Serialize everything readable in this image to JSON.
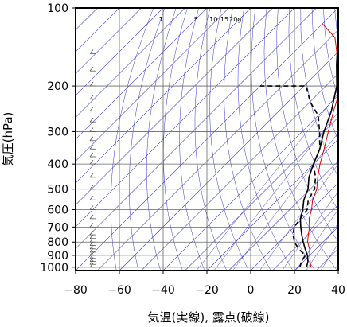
{
  "chart_data": {
    "type": "line",
    "xlabel": "気温(実線), 露点(破線)",
    "ylabel": "気圧(hPa)",
    "xlim": [
      -80,
      40
    ],
    "ylim": [
      1030,
      100
    ],
    "y_scale": "log",
    "x_ticks": [
      -80,
      -60,
      -40,
      -20,
      0,
      20,
      40
    ],
    "x_tick_labels": [
      "−80",
      "−60",
      "−40",
      "−20",
      "0",
      "20",
      "40"
    ],
    "y_ticks": [
      100,
      200,
      300,
      400,
      500,
      600,
      700,
      800,
      900,
      1000
    ],
    "y_tick_labels": [
      "100",
      "200",
      "300",
      "400",
      "500",
      "600",
      "700",
      "800",
      "900",
      "1000"
    ],
    "mixing_ratio_labels": [
      {
        "text": "1",
        "t": -41
      },
      {
        "text": "5",
        "t": -25
      },
      {
        "text": "10",
        "t": -17
      },
      {
        "text": "15",
        "t": -12
      },
      {
        "text": "20g",
        "t": -7
      }
    ],
    "series": [
      {
        "role": "temperature",
        "style": "solid",
        "color": "#000000",
        "points": [
          [
            24,
            1000
          ],
          [
            22,
            950
          ],
          [
            19,
            900
          ],
          [
            15,
            850
          ],
          [
            11,
            800
          ],
          [
            7,
            750
          ],
          [
            3,
            700
          ],
          [
            -1,
            650
          ],
          [
            -4,
            600
          ],
          [
            -8,
            550
          ],
          [
            -11,
            500
          ],
          [
            -16,
            450
          ],
          [
            -20,
            400
          ],
          [
            -24,
            350
          ],
          [
            -30,
            300
          ],
          [
            -36,
            250
          ],
          [
            -45,
            200
          ],
          [
            -55,
            165
          ],
          [
            -63,
            140
          ],
          [
            -68,
            125
          ],
          [
            -72,
            115
          ],
          [
            -75,
            108
          ],
          [
            -77,
            100
          ]
        ]
      },
      {
        "role": "dewpoint",
        "style": "dashed",
        "color": "#000000",
        "points": [
          [
            21,
            1000
          ],
          [
            19,
            950
          ],
          [
            18,
            900
          ],
          [
            12,
            850
          ],
          [
            7,
            800
          ],
          [
            3,
            750
          ],
          [
            0,
            700
          ],
          [
            -1,
            650
          ],
          [
            -2,
            600
          ],
          [
            -6,
            550
          ],
          [
            -8,
            500
          ],
          [
            -13,
            450
          ],
          [
            -20,
            400
          ],
          [
            -24,
            350
          ],
          [
            -32,
            300
          ],
          [
            -40,
            260
          ],
          [
            -50,
            230
          ],
          [
            -59,
            200
          ],
          [
            -80,
            200
          ]
        ]
      },
      {
        "role": "reference",
        "style": "solid",
        "color": "#dd0000",
        "points": [
          [
            26,
            1000
          ],
          [
            23,
            950
          ],
          [
            20,
            900
          ],
          [
            17,
            850
          ],
          [
            13,
            800
          ],
          [
            10,
            750
          ],
          [
            7,
            700
          ],
          [
            3,
            650
          ],
          [
            0,
            600
          ],
          [
            -4,
            550
          ],
          [
            -7,
            500
          ],
          [
            -12,
            450
          ],
          [
            -17,
            400
          ],
          [
            -22,
            350
          ],
          [
            -28,
            300
          ],
          [
            -35,
            250
          ],
          [
            -43,
            200
          ],
          [
            -56,
            160
          ],
          [
            -68,
            130
          ],
          [
            -80,
            115
          ]
        ]
      }
    ],
    "wind_barb_pressures": [
      1000,
      975,
      950,
      925,
      900,
      875,
      850,
      825,
      800,
      775,
      750,
      700,
      650,
      600,
      550,
      500,
      450,
      400,
      375,
      350,
      325,
      300,
      275,
      250,
      225,
      200,
      175,
      150
    ],
    "colors": {
      "background": "#ffffff",
      "frame": "#000000",
      "grid": "#666666",
      "isotherm": "#3333cc",
      "dry_adiabat": "#3333cc"
    }
  }
}
